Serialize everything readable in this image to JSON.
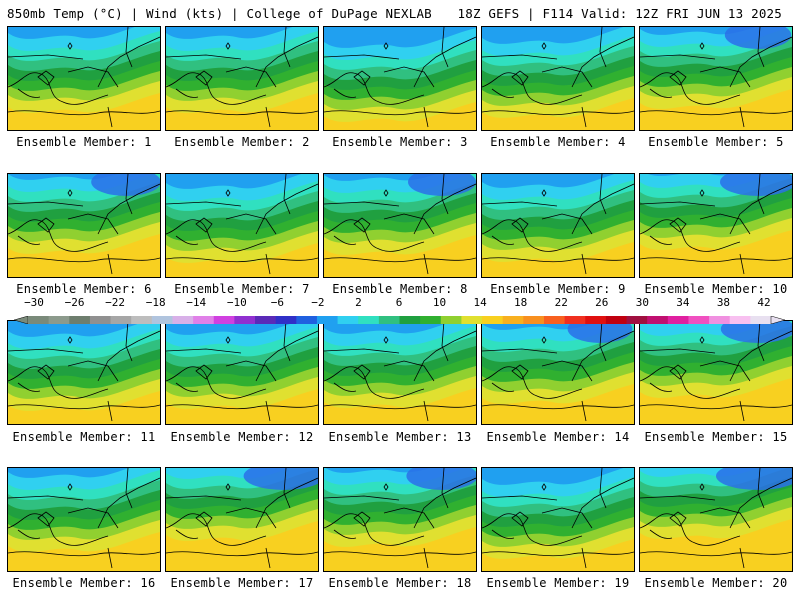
{
  "header": {
    "title_left": "850mb Temp (°C) | Wind (kts) | College of DuPage NEXLAB",
    "title_right": "18Z GEFS | F114 Valid: 12Z FRI JUN 13 2025"
  },
  "members": [
    {
      "label": "Ensemble Member: 1"
    },
    {
      "label": "Ensemble Member: 2"
    },
    {
      "label": "Ensemble Member: 3"
    },
    {
      "label": "Ensemble Member: 4"
    },
    {
      "label": "Ensemble Member: 5"
    },
    {
      "label": "Ensemble Member: 6"
    },
    {
      "label": "Ensemble Member: 7"
    },
    {
      "label": "Ensemble Member: 8"
    },
    {
      "label": "Ensemble Member: 9"
    },
    {
      "label": "Ensemble Member: 10"
    },
    {
      "label": "Ensemble Member: 11"
    },
    {
      "label": "Ensemble Member: 12"
    },
    {
      "label": "Ensemble Member: 13"
    },
    {
      "label": "Ensemble Member: 14"
    },
    {
      "label": "Ensemble Member: 15"
    },
    {
      "label": "Ensemble Member: 16"
    },
    {
      "label": "Ensemble Member: 17"
    },
    {
      "label": "Ensemble Member: 18"
    },
    {
      "label": "Ensemble Member: 19"
    },
    {
      "label": "Ensemble Member: 20"
    }
  ],
  "colorbar": {
    "ticks": [
      "−30",
      "−26",
      "−22",
      "−18",
      "−14",
      "−10",
      "−6",
      "−2",
      "2",
      "6",
      "10",
      "14",
      "18",
      "22",
      "26",
      "30",
      "34",
      "38",
      "42"
    ],
    "min": -30,
    "max": 42,
    "colors": [
      "#7a8a7a",
      "#8c9a8c",
      "#6e7e6e",
      "#909090",
      "#a6a6a6",
      "#bdbdbd",
      "#b0c4de",
      "#d8b0e8",
      "#e080e8",
      "#d040e0",
      "#9030d0",
      "#5a2ab8",
      "#3030c8",
      "#2060e0",
      "#20a0f0",
      "#30d0f0",
      "#30e0c0",
      "#30c080",
      "#20a040",
      "#30b030",
      "#90d030",
      "#e0e030",
      "#f8d020",
      "#f8b020",
      "#f89020",
      "#f86020",
      "#f03020",
      "#e01010",
      "#c00010",
      "#a01040",
      "#c01070",
      "#e020a0",
      "#f050c0",
      "#f090e0",
      "#f8c0f0",
      "#e8e0f0"
    ]
  }
}
